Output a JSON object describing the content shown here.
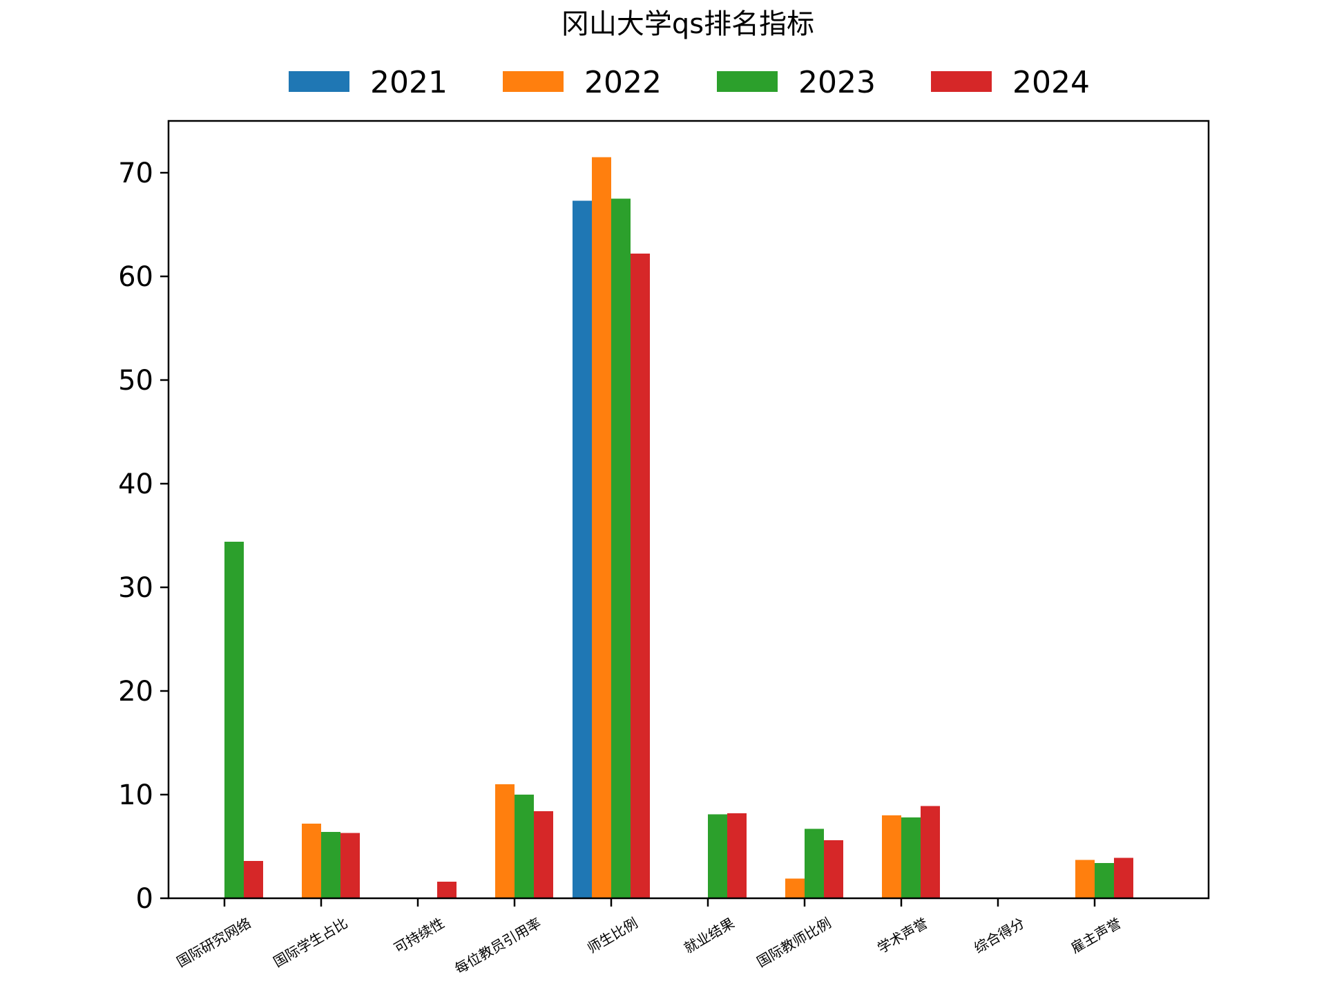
{
  "chart_data": {
    "type": "bar",
    "title": "冈山大学qs排名指标",
    "xlabel": "",
    "ylabel": "",
    "categories": [
      "国际研究网络",
      "国际学生占比",
      "可持续性",
      "每位教员引用率",
      "师生比例",
      "就业结果",
      "国际教师比例",
      "学术声誉",
      "综合得分",
      "雇主声誉"
    ],
    "yticks": [
      0,
      10,
      20,
      30,
      40,
      50,
      60,
      70
    ],
    "ylim": [
      0,
      75
    ],
    "grid": false,
    "legend_position": "top-center",
    "series": [
      {
        "name": "2021",
        "color": "#1f77b4",
        "values": [
          0,
          0,
          0,
          0,
          67.3,
          0,
          0,
          0,
          0,
          0
        ]
      },
      {
        "name": "2022",
        "color": "#ff7f0e",
        "values": [
          0,
          7.2,
          0,
          11.0,
          71.5,
          0,
          1.9,
          8.0,
          0,
          3.7
        ]
      },
      {
        "name": "2023",
        "color": "#2ca02c",
        "values": [
          34.4,
          6.4,
          0,
          10.0,
          67.5,
          8.1,
          6.7,
          7.8,
          0,
          3.4
        ]
      },
      {
        "name": "2024",
        "color": "#d62728",
        "values": [
          3.6,
          6.3,
          1.6,
          8.4,
          62.2,
          8.2,
          5.6,
          8.9,
          0,
          3.9
        ]
      }
    ]
  }
}
